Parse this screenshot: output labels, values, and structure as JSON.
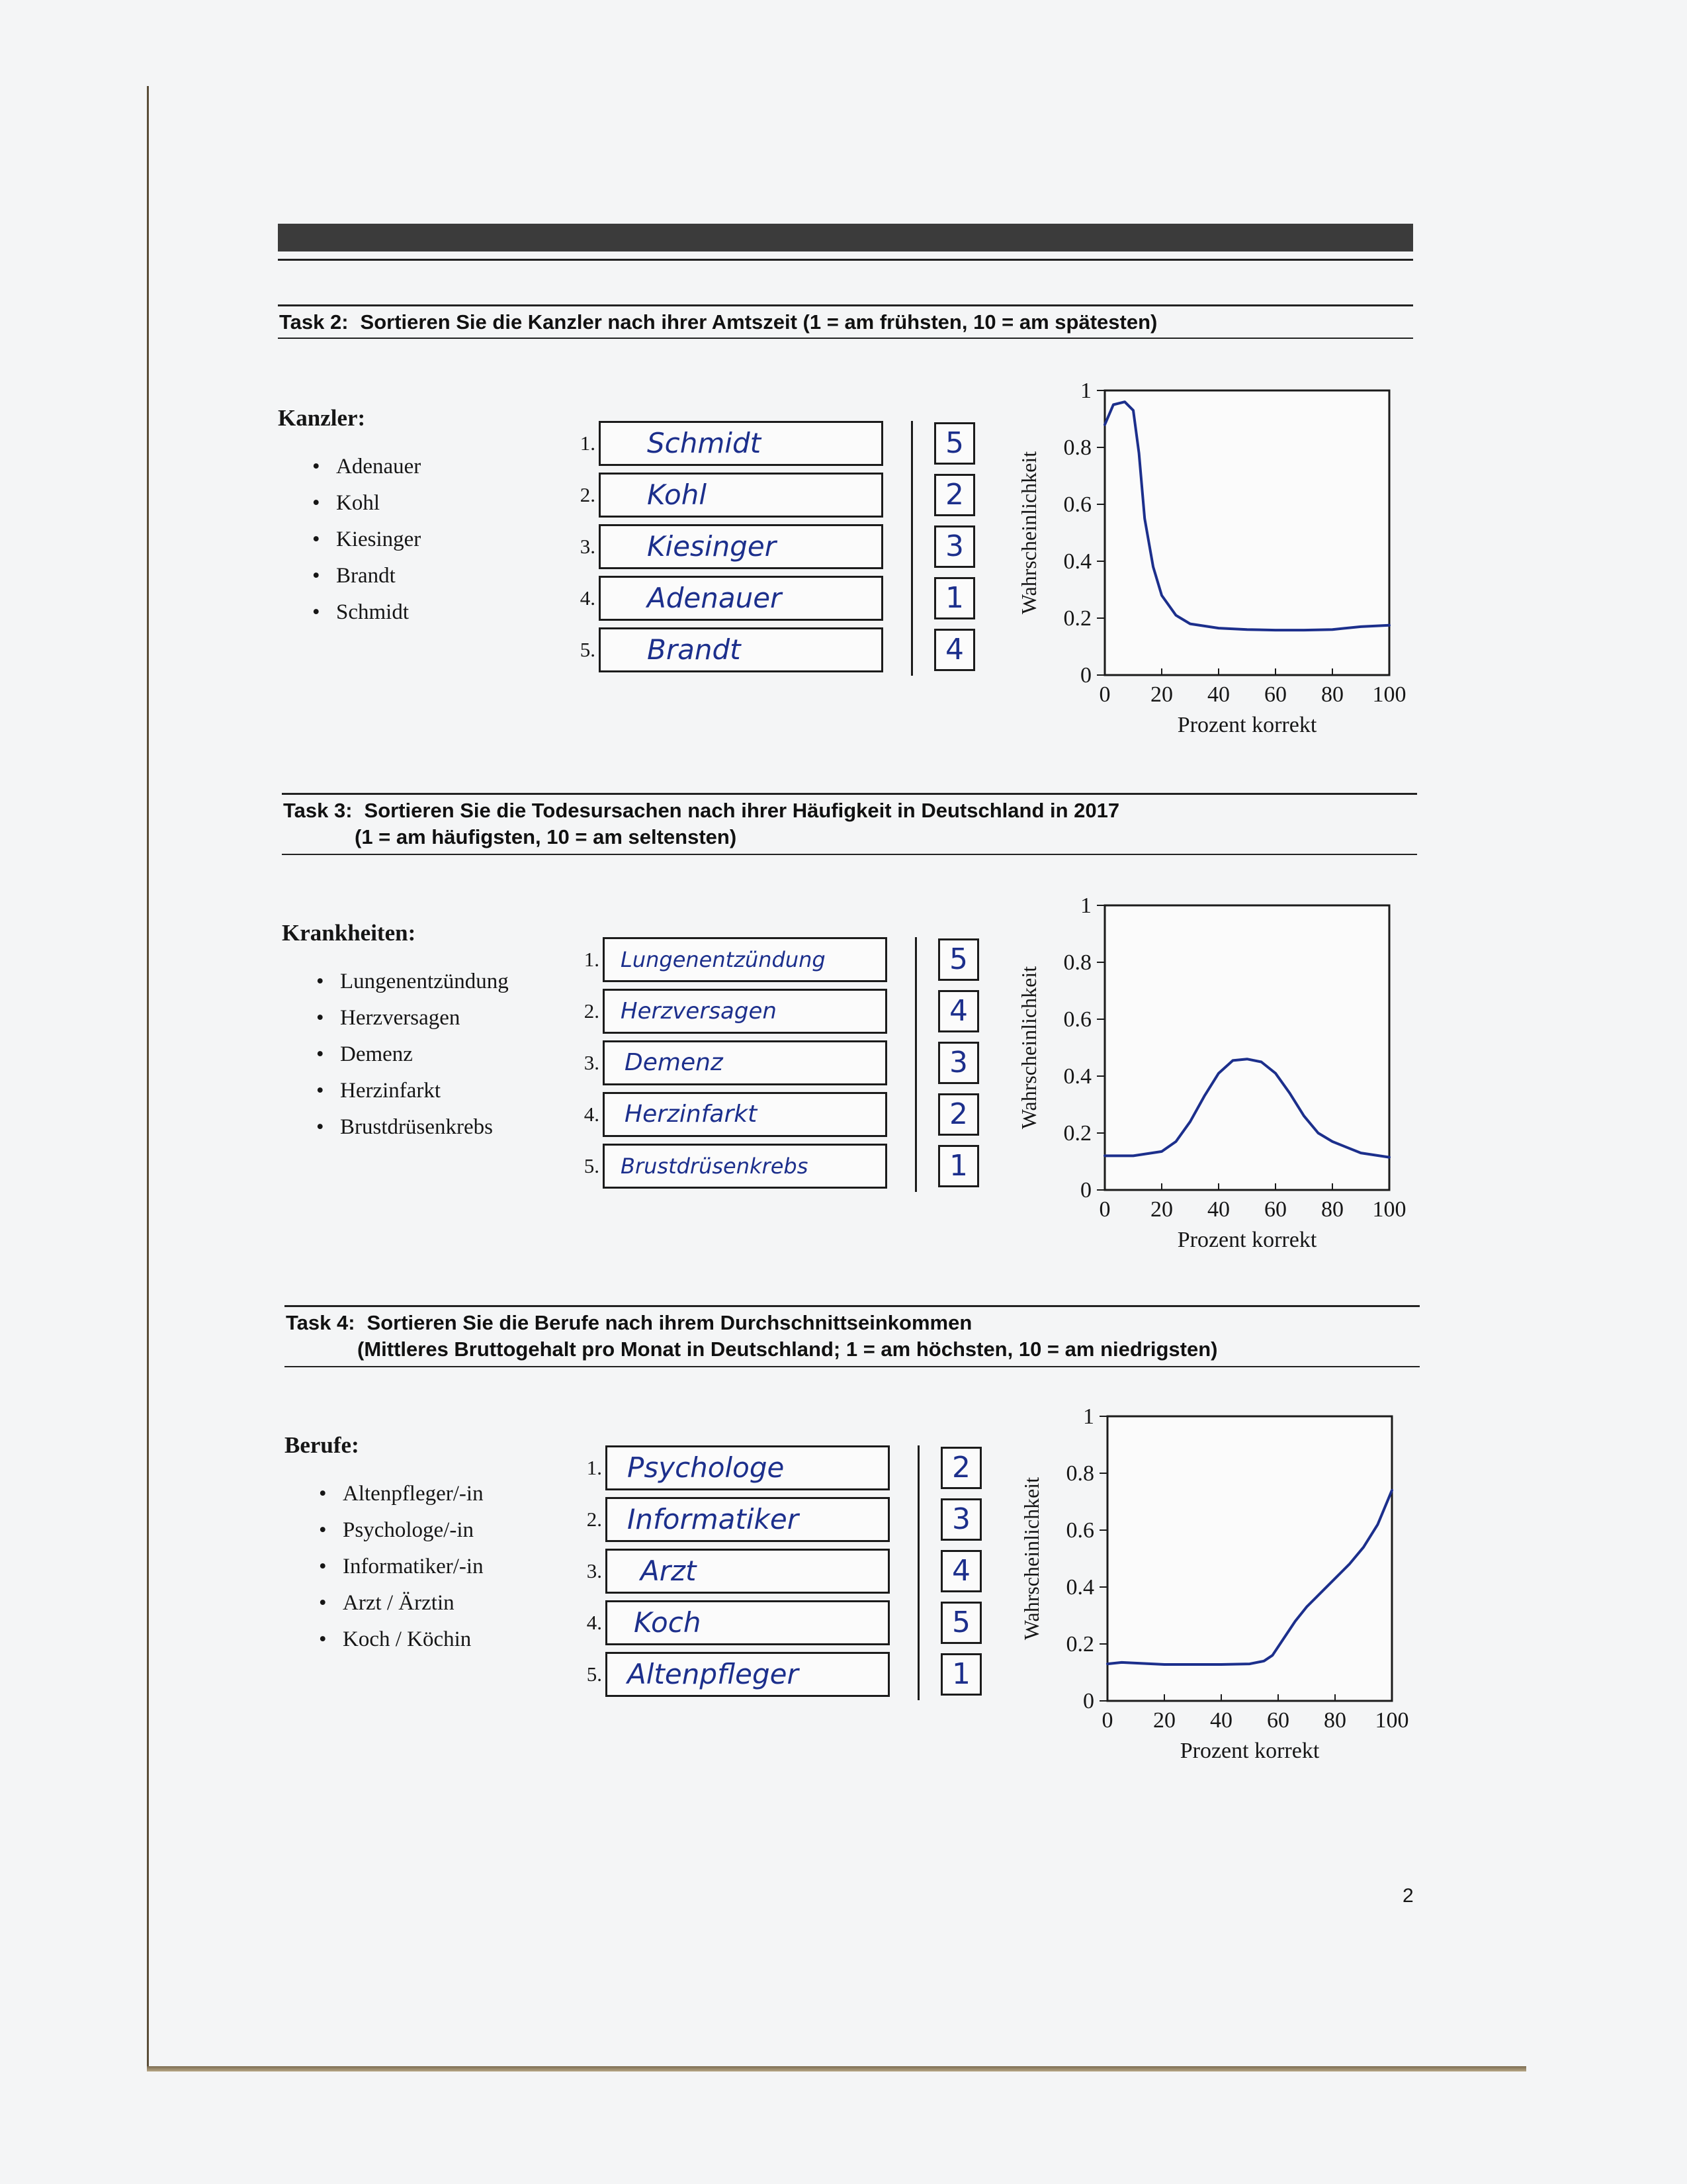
{
  "page_number": "2",
  "tasks": [
    {
      "label": "Task 2:",
      "title_line1": "Sortieren Sie die Kanzler nach ihrer Amtszeit (1 = am frühsten, 10 = am spätesten)",
      "title_line2": "",
      "list_heading": "Kanzler:",
      "items": [
        "Adenauer",
        "Kohl",
        "Kiesinger",
        "Brandt",
        "Schmidt"
      ],
      "answers": [
        {
          "n": "1.",
          "text": "Schmidt",
          "rank": "5"
        },
        {
          "n": "2.",
          "text": "Kohl",
          "rank": "2"
        },
        {
          "n": "3.",
          "text": "Kiesinger",
          "rank": "3"
        },
        {
          "n": "4.",
          "text": "Adenauer",
          "rank": "1"
        },
        {
          "n": "5.",
          "text": "Brandt",
          "rank": "4"
        }
      ]
    },
    {
      "label": "Task 3:",
      "title_line1": "Sortieren Sie die Todesursachen nach ihrer Häufigkeit in Deutschland in 2017",
      "title_line2": "(1 = am häufigsten, 10 = am seltensten)",
      "list_heading": "Krankheiten:",
      "items": [
        "Lungenentzündung",
        "Herzversagen",
        "Demenz",
        "Herzinfarkt",
        "Brustdrüsenkrebs"
      ],
      "answers": [
        {
          "n": "1.",
          "text": "Lungenentzündung",
          "rank": "5"
        },
        {
          "n": "2.",
          "text": "Herzversagen",
          "rank": "4"
        },
        {
          "n": "3.",
          "text": "Demenz",
          "rank": "3"
        },
        {
          "n": "4.",
          "text": "Herzinfarkt",
          "rank": "2"
        },
        {
          "n": "5.",
          "text": "Brustdrüsenkrebs",
          "rank": "1"
        }
      ]
    },
    {
      "label": "Task 4:",
      "title_line1": "Sortieren Sie die Berufe nach ihrem Durchschnittseinkommen",
      "title_line2": "(Mittleres Bruttogehalt pro Monat in Deutschland; 1 = am höchsten, 10 = am niedrigsten)",
      "list_heading": "Berufe:",
      "items": [
        "Altenpfleger/-in",
        "Psychologe/-in",
        "Informatiker/-in",
        "Arzt / Ärztin",
        "Koch / Köchin"
      ],
      "answers": [
        {
          "n": "1.",
          "text": "Psychologe",
          "rank": "2"
        },
        {
          "n": "2.",
          "text": "Informatiker",
          "rank": "3"
        },
        {
          "n": "3.",
          "text": "Arzt",
          "rank": "4"
        },
        {
          "n": "4.",
          "text": "Koch",
          "rank": "5"
        },
        {
          "n": "5.",
          "text": "Altenpfleger",
          "rank": "1"
        }
      ]
    }
  ],
  "ink_color": "#1c2f8c",
  "chart_data": [
    {
      "type": "line",
      "xlabel": "Prozent korrekt",
      "ylabel": "Wahrscheinlichkeit",
      "xlim": [
        0,
        100
      ],
      "ylim": [
        0,
        1
      ],
      "x_ticks": [
        "0",
        "20",
        "40",
        "60",
        "80",
        "100"
      ],
      "y_ticks": [
        "0",
        "0.2",
        "0.4",
        "0.6",
        "0.8",
        "1"
      ],
      "series": [
        {
          "x": [
            0,
            3,
            7,
            10,
            12,
            14,
            17,
            20,
            25,
            30,
            40,
            50,
            60,
            70,
            80,
            90,
            100
          ],
          "y": [
            0.88,
            0.95,
            0.96,
            0.93,
            0.78,
            0.55,
            0.38,
            0.28,
            0.21,
            0.18,
            0.165,
            0.16,
            0.158,
            0.158,
            0.16,
            0.17,
            0.175
          ]
        }
      ]
    },
    {
      "type": "line",
      "xlabel": "Prozent korrekt",
      "ylabel": "Wahrscheinlichkeit",
      "xlim": [
        0,
        100
      ],
      "ylim": [
        0,
        1
      ],
      "x_ticks": [
        "0",
        "20",
        "40",
        "60",
        "80",
        "100"
      ],
      "y_ticks": [
        "0",
        "0.2",
        "0.4",
        "0.6",
        "0.8",
        "1"
      ],
      "series": [
        {
          "x": [
            0,
            10,
            20,
            25,
            30,
            35,
            40,
            45,
            50,
            55,
            60,
            65,
            70,
            75,
            80,
            90,
            100
          ],
          "y": [
            0.12,
            0.12,
            0.135,
            0.17,
            0.24,
            0.33,
            0.41,
            0.455,
            0.46,
            0.45,
            0.41,
            0.34,
            0.26,
            0.2,
            0.17,
            0.13,
            0.115
          ]
        }
      ]
    },
    {
      "type": "line",
      "xlabel": "Prozent korrekt",
      "ylabel": "Wahrscheinlichkeit",
      "xlim": [
        0,
        100
      ],
      "ylim": [
        0,
        1
      ],
      "x_ticks": [
        "0",
        "20",
        "40",
        "60",
        "80",
        "100"
      ],
      "y_ticks": [
        "0",
        "0.2",
        "0.4",
        "0.6",
        "0.8",
        "1"
      ],
      "series": [
        {
          "x": [
            0,
            5,
            20,
            30,
            40,
            50,
            55,
            58,
            62,
            66,
            70,
            75,
            80,
            85,
            90,
            95,
            100
          ],
          "y": [
            0.13,
            0.135,
            0.128,
            0.128,
            0.128,
            0.13,
            0.14,
            0.16,
            0.22,
            0.28,
            0.33,
            0.38,
            0.43,
            0.48,
            0.54,
            0.62,
            0.74
          ]
        }
      ]
    }
  ]
}
